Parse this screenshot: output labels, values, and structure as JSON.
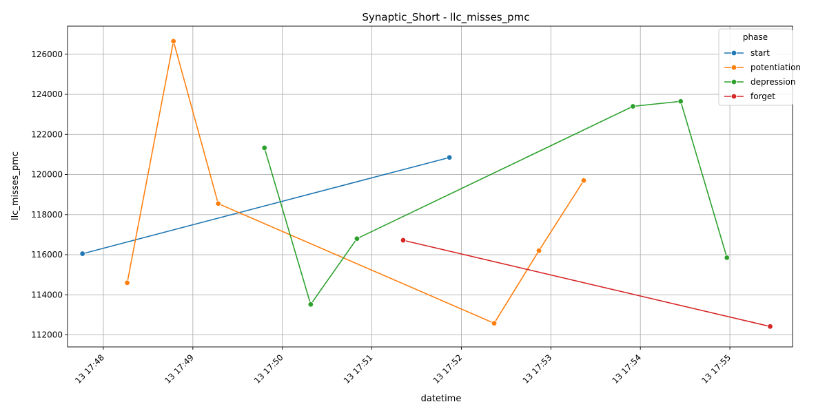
{
  "chart_data": {
    "type": "line",
    "title": "Synaptic_Short - llc_misses_pmc",
    "xlabel": "datetime",
    "ylabel": "llc_misses_pmc",
    "xlim": [
      "13 17:47:36",
      "13 17:55:42"
    ],
    "ylim": [
      111400,
      127400
    ],
    "x_ticks": [
      {
        "value": "13 17:48:00",
        "label": "13 17:48"
      },
      {
        "value": "13 17:49:00",
        "label": "13 17:49"
      },
      {
        "value": "13 17:50:00",
        "label": "13 17:50"
      },
      {
        "value": "13 17:51:00",
        "label": "13 17:51"
      },
      {
        "value": "13 17:52:00",
        "label": "13 17:52"
      },
      {
        "value": "13 17:53:00",
        "label": "13 17:53"
      },
      {
        "value": "13 17:54:00",
        "label": "13 17:54"
      },
      {
        "value": "13 17:55:00",
        "label": "13 17:55"
      }
    ],
    "y_ticks": [
      112000,
      114000,
      116000,
      118000,
      120000,
      122000,
      124000,
      126000
    ],
    "grid": true,
    "legend": {
      "title": "phase",
      "position": "top-right"
    },
    "series": [
      {
        "name": "start",
        "color": "#1f77b4",
        "points": [
          {
            "x": "13 17:47:46",
            "y": 116050
          },
          {
            "x": "13 17:51:52",
            "y": 120850
          }
        ]
      },
      {
        "name": "potentiation",
        "color": "#ff7f0e",
        "points": [
          {
            "x": "13 17:48:16",
            "y": 114600
          },
          {
            "x": "13 17:48:47",
            "y": 126650
          },
          {
            "x": "13 17:49:17",
            "y": 118550
          },
          {
            "x": "13 17:52:22",
            "y": 112580
          },
          {
            "x": "13 17:52:52",
            "y": 116200
          },
          {
            "x": "13 17:53:22",
            "y": 119700
          }
        ]
      },
      {
        "name": "depression",
        "color": "#2ca02c",
        "points": [
          {
            "x": "13 17:49:48",
            "y": 121330
          },
          {
            "x": "13 17:50:19",
            "y": 113520
          },
          {
            "x": "13 17:50:50",
            "y": 116800
          },
          {
            "x": "13 17:53:55",
            "y": 123400
          },
          {
            "x": "13 17:54:27",
            "y": 123650
          },
          {
            "x": "13 17:54:58",
            "y": 115850
          }
        ]
      },
      {
        "name": "forget",
        "color": "#d62728",
        "points": [
          {
            "x": "13 17:51:21",
            "y": 116720
          },
          {
            "x": "13 17:55:27",
            "y": 112420
          }
        ]
      }
    ]
  }
}
